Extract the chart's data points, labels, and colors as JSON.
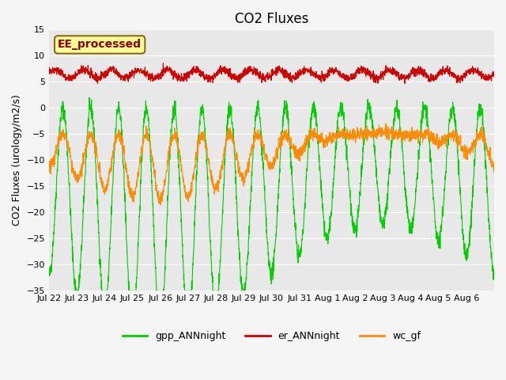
{
  "title": "CO2 Fluxes",
  "ylabel": "CO2 Fluxes (urology/m2/s)",
  "ylim": [
    -35,
    15
  ],
  "yticks": [
    -35,
    -30,
    -25,
    -20,
    -15,
    -10,
    -5,
    0,
    5,
    10,
    15
  ],
  "days": 16,
  "pts_per_day": 144,
  "phase_gpp": 0.5,
  "annotation": "EE_processed",
  "annotation_color": "#8B0000",
  "annotation_bg": "#FFFF99",
  "annotation_edge": "#8B6914",
  "line_colors": {
    "gpp": "#00CC00",
    "er": "#CC0000",
    "wc": "#FF8C00"
  },
  "legend_labels": [
    "gpp_ANNnight",
    "er_ANNnight",
    "wc_gf"
  ],
  "x_tick_labels": [
    "Jul 22",
    "Jul 23",
    "Jul 24",
    "Jul 25",
    "Jul 26",
    "Jul 27",
    "Jul 28",
    "Jul 29",
    "Jul 30",
    "Jul 31",
    "Aug 1",
    "Aug 2",
    "Aug 3",
    "Aug 4",
    "Aug 5",
    "Aug 6"
  ],
  "bg_color": "#E8E8E8",
  "fig_color": "#F5F5F5",
  "title_fontsize": 12,
  "axis_fontsize": 9,
  "tick_fontsize": 8,
  "legend_fontsize": 9
}
